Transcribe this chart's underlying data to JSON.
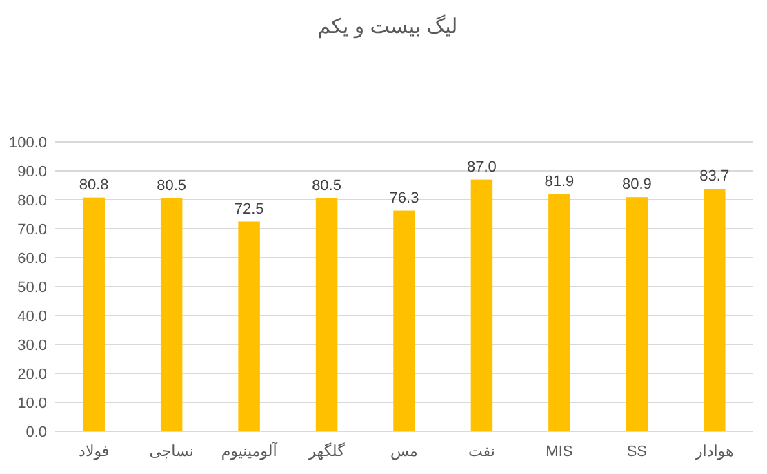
{
  "chart_data": {
    "type": "bar",
    "title": "لیگ بیست و یکم",
    "categories": [
      "فولاد",
      "نساجی",
      "آلومینیوم",
      "گلگهر",
      "مس",
      "نفت",
      "MIS",
      "SS",
      "هوادار"
    ],
    "values": [
      80.8,
      80.5,
      72.5,
      80.5,
      76.3,
      87.0,
      81.9,
      80.9,
      83.7
    ],
    "value_labels": [
      "80.8",
      "80.5",
      "72.5",
      "80.5",
      "76.3",
      "87.0",
      "81.9",
      "80.9",
      "83.7"
    ],
    "color": "#ffc000",
    "ylim": [
      0,
      100
    ],
    "yticks": [
      {
        "value": 0,
        "label": "0.0"
      },
      {
        "value": 10,
        "label": "10.0"
      },
      {
        "value": 20,
        "label": "20.0"
      },
      {
        "value": 30,
        "label": "30.0"
      },
      {
        "value": 40,
        "label": "40.0"
      },
      {
        "value": 50,
        "label": "50.0"
      },
      {
        "value": 60,
        "label": "60.0"
      },
      {
        "value": 70,
        "label": "70.0"
      },
      {
        "value": 80,
        "label": "80.0"
      },
      {
        "value": 90,
        "label": "90.0"
      },
      {
        "value": 100,
        "label": "100.0"
      }
    ],
    "grid": "y"
  }
}
